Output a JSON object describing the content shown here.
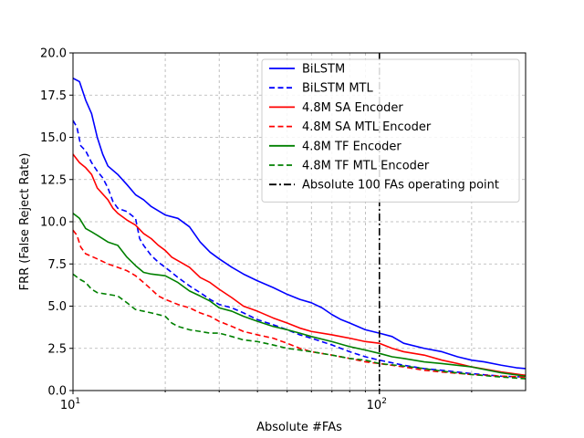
{
  "chart_data": {
    "type": "line",
    "title": "",
    "xlabel": "Absolute #FAs",
    "ylabel": "FRR (False Reject Rate)",
    "xscale": "log",
    "xlim": [
      10,
      300
    ],
    "ylim": [
      0,
      20
    ],
    "x_ticks": [
      {
        "value": 10,
        "label": "10",
        "exp": "1"
      },
      {
        "value": 100,
        "label": "10",
        "exp": "2"
      }
    ],
    "y_ticks": [
      0.0,
      2.5,
      5.0,
      7.5,
      10.0,
      12.5,
      15.0,
      17.5,
      20.0
    ],
    "y_tick_labels": [
      "0.0",
      "2.5",
      "5.0",
      "7.5",
      "10.0",
      "12.5",
      "15.0",
      "17.5",
      "20.0"
    ],
    "grid": true,
    "grid_style": "dashed",
    "legend_position": "top-right",
    "vline": {
      "x": 100,
      "name": "Absolute 100 FAs operating point",
      "color": "#000000",
      "style": "dashdot"
    },
    "series": [
      {
        "name": "BiLSTM",
        "color": "#0000ff",
        "style": "solid",
        "points": [
          [
            10,
            18.5
          ],
          [
            10.5,
            18.3
          ],
          [
            11,
            17.2
          ],
          [
            11.5,
            16.4
          ],
          [
            12,
            15.0
          ],
          [
            12.5,
            14.0
          ],
          [
            13,
            13.3
          ],
          [
            14,
            12.8
          ],
          [
            15,
            12.2
          ],
          [
            16,
            11.6
          ],
          [
            17,
            11.3
          ],
          [
            18,
            10.9
          ],
          [
            20,
            10.4
          ],
          [
            22,
            10.2
          ],
          [
            24,
            9.7
          ],
          [
            26,
            8.8
          ],
          [
            28,
            8.2
          ],
          [
            30,
            7.8
          ],
          [
            33,
            7.3
          ],
          [
            36,
            6.9
          ],
          [
            40,
            6.5
          ],
          [
            45,
            6.1
          ],
          [
            50,
            5.7
          ],
          [
            55,
            5.4
          ],
          [
            60,
            5.2
          ],
          [
            65,
            4.9
          ],
          [
            70,
            4.5
          ],
          [
            75,
            4.2
          ],
          [
            80,
            4.0
          ],
          [
            90,
            3.6
          ],
          [
            100,
            3.4
          ],
          [
            110,
            3.2
          ],
          [
            120,
            2.8
          ],
          [
            140,
            2.5
          ],
          [
            160,
            2.3
          ],
          [
            180,
            2.0
          ],
          [
            200,
            1.8
          ],
          [
            220,
            1.7
          ],
          [
            250,
            1.5
          ],
          [
            280,
            1.35
          ],
          [
            300,
            1.3
          ]
        ]
      },
      {
        "name": "BiLSTM MTL",
        "color": "#0000ff",
        "style": "dashed",
        "points": [
          [
            10,
            16.0
          ],
          [
            10.3,
            15.6
          ],
          [
            10.6,
            14.5
          ],
          [
            11,
            14.2
          ],
          [
            11.5,
            13.5
          ],
          [
            12,
            13.0
          ],
          [
            12.5,
            12.6
          ],
          [
            13,
            12.0
          ],
          [
            13.5,
            11.2
          ],
          [
            14,
            10.8
          ],
          [
            15,
            10.6
          ],
          [
            16,
            10.2
          ],
          [
            16.5,
            9.0
          ],
          [
            17,
            8.6
          ],
          [
            18,
            8.0
          ],
          [
            19,
            7.6
          ],
          [
            20,
            7.3
          ],
          [
            22,
            6.7
          ],
          [
            24,
            6.2
          ],
          [
            26,
            5.8
          ],
          [
            28,
            5.4
          ],
          [
            30,
            5.1
          ],
          [
            33,
            4.9
          ],
          [
            36,
            4.6
          ],
          [
            40,
            4.2
          ],
          [
            45,
            3.9
          ],
          [
            50,
            3.6
          ],
          [
            55,
            3.3
          ],
          [
            60,
            3.1
          ],
          [
            70,
            2.7
          ],
          [
            80,
            2.3
          ],
          [
            90,
            2.0
          ],
          [
            100,
            1.8
          ],
          [
            120,
            1.5
          ],
          [
            140,
            1.3
          ],
          [
            160,
            1.2
          ],
          [
            200,
            1.0
          ],
          [
            250,
            0.85
          ],
          [
            300,
            0.8
          ]
        ]
      },
      {
        "name": "4.8M SA Encoder",
        "color": "#ff0000",
        "style": "solid",
        "points": [
          [
            10,
            14.0
          ],
          [
            10.5,
            13.5
          ],
          [
            11,
            13.2
          ],
          [
            11.5,
            12.8
          ],
          [
            12,
            12.0
          ],
          [
            13,
            11.3
          ],
          [
            13.5,
            10.8
          ],
          [
            14,
            10.5
          ],
          [
            15,
            10.1
          ],
          [
            16,
            9.8
          ],
          [
            17,
            9.3
          ],
          [
            18,
            9.0
          ],
          [
            19,
            8.6
          ],
          [
            20,
            8.3
          ],
          [
            21,
            7.9
          ],
          [
            24,
            7.3
          ],
          [
            26,
            6.7
          ],
          [
            28,
            6.4
          ],
          [
            30,
            6.0
          ],
          [
            33,
            5.5
          ],
          [
            36,
            5.0
          ],
          [
            40,
            4.7
          ],
          [
            45,
            4.3
          ],
          [
            50,
            4.0
          ],
          [
            55,
            3.7
          ],
          [
            60,
            3.5
          ],
          [
            70,
            3.3
          ],
          [
            80,
            3.1
          ],
          [
            90,
            2.9
          ],
          [
            100,
            2.8
          ],
          [
            110,
            2.5
          ],
          [
            120,
            2.3
          ],
          [
            140,
            2.1
          ],
          [
            160,
            1.8
          ],
          [
            180,
            1.6
          ],
          [
            200,
            1.4
          ],
          [
            250,
            1.1
          ],
          [
            300,
            0.9
          ]
        ]
      },
      {
        "name": "4.8M SA MTL Encoder",
        "color": "#ff0000",
        "style": "dashed",
        "points": [
          [
            10,
            9.5
          ],
          [
            10.3,
            9.2
          ],
          [
            10.6,
            8.5
          ],
          [
            11,
            8.1
          ],
          [
            12,
            7.8
          ],
          [
            13,
            7.5
          ],
          [
            14,
            7.3
          ],
          [
            15,
            7.1
          ],
          [
            16,
            6.8
          ],
          [
            17,
            6.4
          ],
          [
            18,
            6.0
          ],
          [
            19,
            5.6
          ],
          [
            20,
            5.4
          ],
          [
            22,
            5.1
          ],
          [
            24,
            4.9
          ],
          [
            26,
            4.6
          ],
          [
            28,
            4.4
          ],
          [
            30,
            4.1
          ],
          [
            33,
            3.8
          ],
          [
            36,
            3.5
          ],
          [
            40,
            3.3
          ],
          [
            45,
            3.1
          ],
          [
            50,
            2.8
          ],
          [
            55,
            2.5
          ],
          [
            60,
            2.3
          ],
          [
            70,
            2.1
          ],
          [
            80,
            1.9
          ],
          [
            90,
            1.7
          ],
          [
            100,
            1.6
          ],
          [
            120,
            1.4
          ],
          [
            140,
            1.2
          ],
          [
            160,
            1.1
          ],
          [
            200,
            0.95
          ],
          [
            250,
            0.85
          ],
          [
            300,
            0.8
          ]
        ]
      },
      {
        "name": "4.8M TF Encoder",
        "color": "#008000",
        "style": "solid",
        "points": [
          [
            10,
            10.5
          ],
          [
            10.5,
            10.2
          ],
          [
            11,
            9.6
          ],
          [
            11.5,
            9.4
          ],
          [
            12,
            9.2
          ],
          [
            13,
            8.8
          ],
          [
            14,
            8.6
          ],
          [
            15,
            7.9
          ],
          [
            16,
            7.4
          ],
          [
            17,
            7.0
          ],
          [
            18,
            6.9
          ],
          [
            20,
            6.8
          ],
          [
            22,
            6.4
          ],
          [
            24,
            5.9
          ],
          [
            26,
            5.6
          ],
          [
            28,
            5.3
          ],
          [
            30,
            4.9
          ],
          [
            33,
            4.7
          ],
          [
            36,
            4.4
          ],
          [
            40,
            4.1
          ],
          [
            45,
            3.8
          ],
          [
            50,
            3.6
          ],
          [
            55,
            3.4
          ],
          [
            60,
            3.2
          ],
          [
            70,
            2.9
          ],
          [
            80,
            2.6
          ],
          [
            90,
            2.4
          ],
          [
            100,
            2.2
          ],
          [
            110,
            2.0
          ],
          [
            120,
            1.9
          ],
          [
            140,
            1.7
          ],
          [
            160,
            1.6
          ],
          [
            200,
            1.4
          ],
          [
            250,
            1.05
          ],
          [
            300,
            0.85
          ]
        ]
      },
      {
        "name": "4.8M TF MTL Encoder",
        "color": "#008000",
        "style": "dashed",
        "points": [
          [
            10,
            6.9
          ],
          [
            10.5,
            6.6
          ],
          [
            11,
            6.4
          ],
          [
            11.5,
            6.0
          ],
          [
            12,
            5.8
          ],
          [
            13,
            5.7
          ],
          [
            14,
            5.6
          ],
          [
            15,
            5.2
          ],
          [
            16,
            4.8
          ],
          [
            17,
            4.7
          ],
          [
            18,
            4.6
          ],
          [
            20,
            4.4
          ],
          [
            21,
            4.0
          ],
          [
            22,
            3.8
          ],
          [
            24,
            3.6
          ],
          [
            26,
            3.5
          ],
          [
            28,
            3.4
          ],
          [
            30,
            3.4
          ],
          [
            33,
            3.2
          ],
          [
            36,
            3.0
          ],
          [
            40,
            2.9
          ],
          [
            45,
            2.7
          ],
          [
            50,
            2.5
          ],
          [
            55,
            2.4
          ],
          [
            60,
            2.3
          ],
          [
            70,
            2.1
          ],
          [
            80,
            1.9
          ],
          [
            90,
            1.8
          ],
          [
            100,
            1.6
          ],
          [
            120,
            1.45
          ],
          [
            140,
            1.3
          ],
          [
            160,
            1.15
          ],
          [
            200,
            0.95
          ],
          [
            250,
            0.8
          ],
          [
            300,
            0.7
          ]
        ]
      }
    ]
  }
}
